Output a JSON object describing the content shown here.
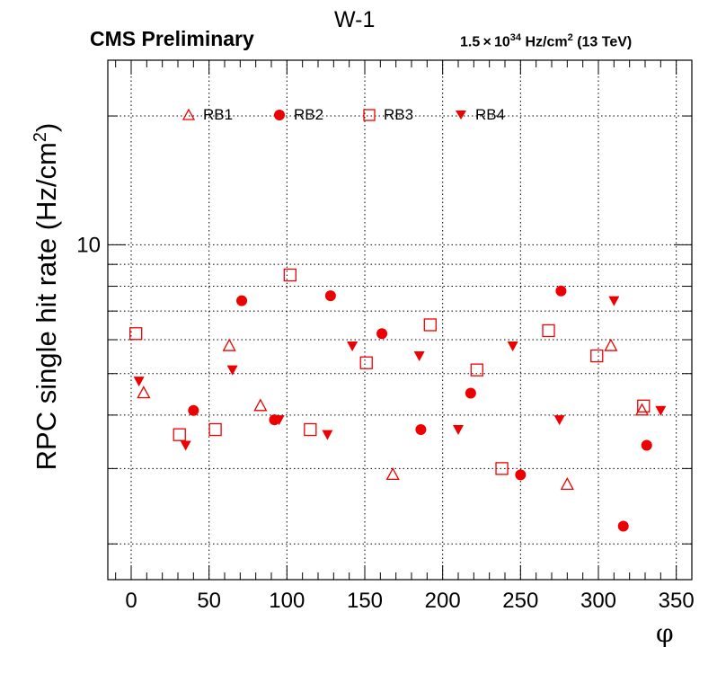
{
  "header": {
    "title": "W-1",
    "experiment": "CMS Preliminary",
    "lumi_base": "1.5",
    "lumi_times": "×",
    "lumi_ten": "10",
    "lumi_exp": "34",
    "lumi_unit": "Hz/cm",
    "lumi_unit_exp": "2",
    "lumi_energy": "(13 TeV)"
  },
  "colors": {
    "marker": "#ee0000",
    "grid": "#000000"
  },
  "chart_data": {
    "type": "scatter",
    "xlabel": "φ",
    "ylabel": "RPC single hit rate (Hz/cm",
    "ylabel_exp": "2",
    "ylabel_close": ")",
    "xlim": [
      -15,
      360
    ],
    "ylim": [
      1.65,
      27
    ],
    "yscale": "log",
    "x_ticks": [
      0,
      50,
      100,
      150,
      200,
      250,
      300,
      350
    ],
    "y_tick_labels": [
      {
        "value": 10,
        "label": "10"
      }
    ],
    "grid": true,
    "legend_position": "top",
    "series": [
      {
        "name": "RB1",
        "marker": "triangle-up-open",
        "x": [
          8,
          63,
          83,
          168,
          280,
          308,
          328
        ],
        "y": [
          4.5,
          5.8,
          4.2,
          2.9,
          2.75,
          5.8,
          4.1
        ]
      },
      {
        "name": "RB2",
        "marker": "circle-filled",
        "x": [
          40,
          71,
          92,
          128,
          161,
          186,
          218,
          250,
          276,
          316,
          331
        ],
        "y": [
          4.1,
          7.4,
          3.9,
          7.6,
          6.2,
          3.7,
          4.5,
          2.9,
          7.8,
          2.2,
          3.4
        ]
      },
      {
        "name": "RB3",
        "marker": "square-open",
        "x": [
          3,
          31,
          54,
          102,
          115,
          151,
          192,
          222,
          238,
          268,
          299,
          329
        ],
        "y": [
          6.2,
          3.6,
          3.7,
          8.5,
          3.7,
          5.3,
          6.5,
          5.1,
          3.0,
          6.3,
          5.5,
          4.2
        ]
      },
      {
        "name": "RB4",
        "marker": "triangle-down-filled",
        "x": [
          5,
          35,
          65,
          95,
          126,
          142,
          185,
          210,
          245,
          275,
          310,
          340
        ],
        "y": [
          4.8,
          3.4,
          5.1,
          3.9,
          3.6,
          5.8,
          5.5,
          3.7,
          5.8,
          3.9,
          7.4,
          4.1
        ]
      }
    ]
  }
}
